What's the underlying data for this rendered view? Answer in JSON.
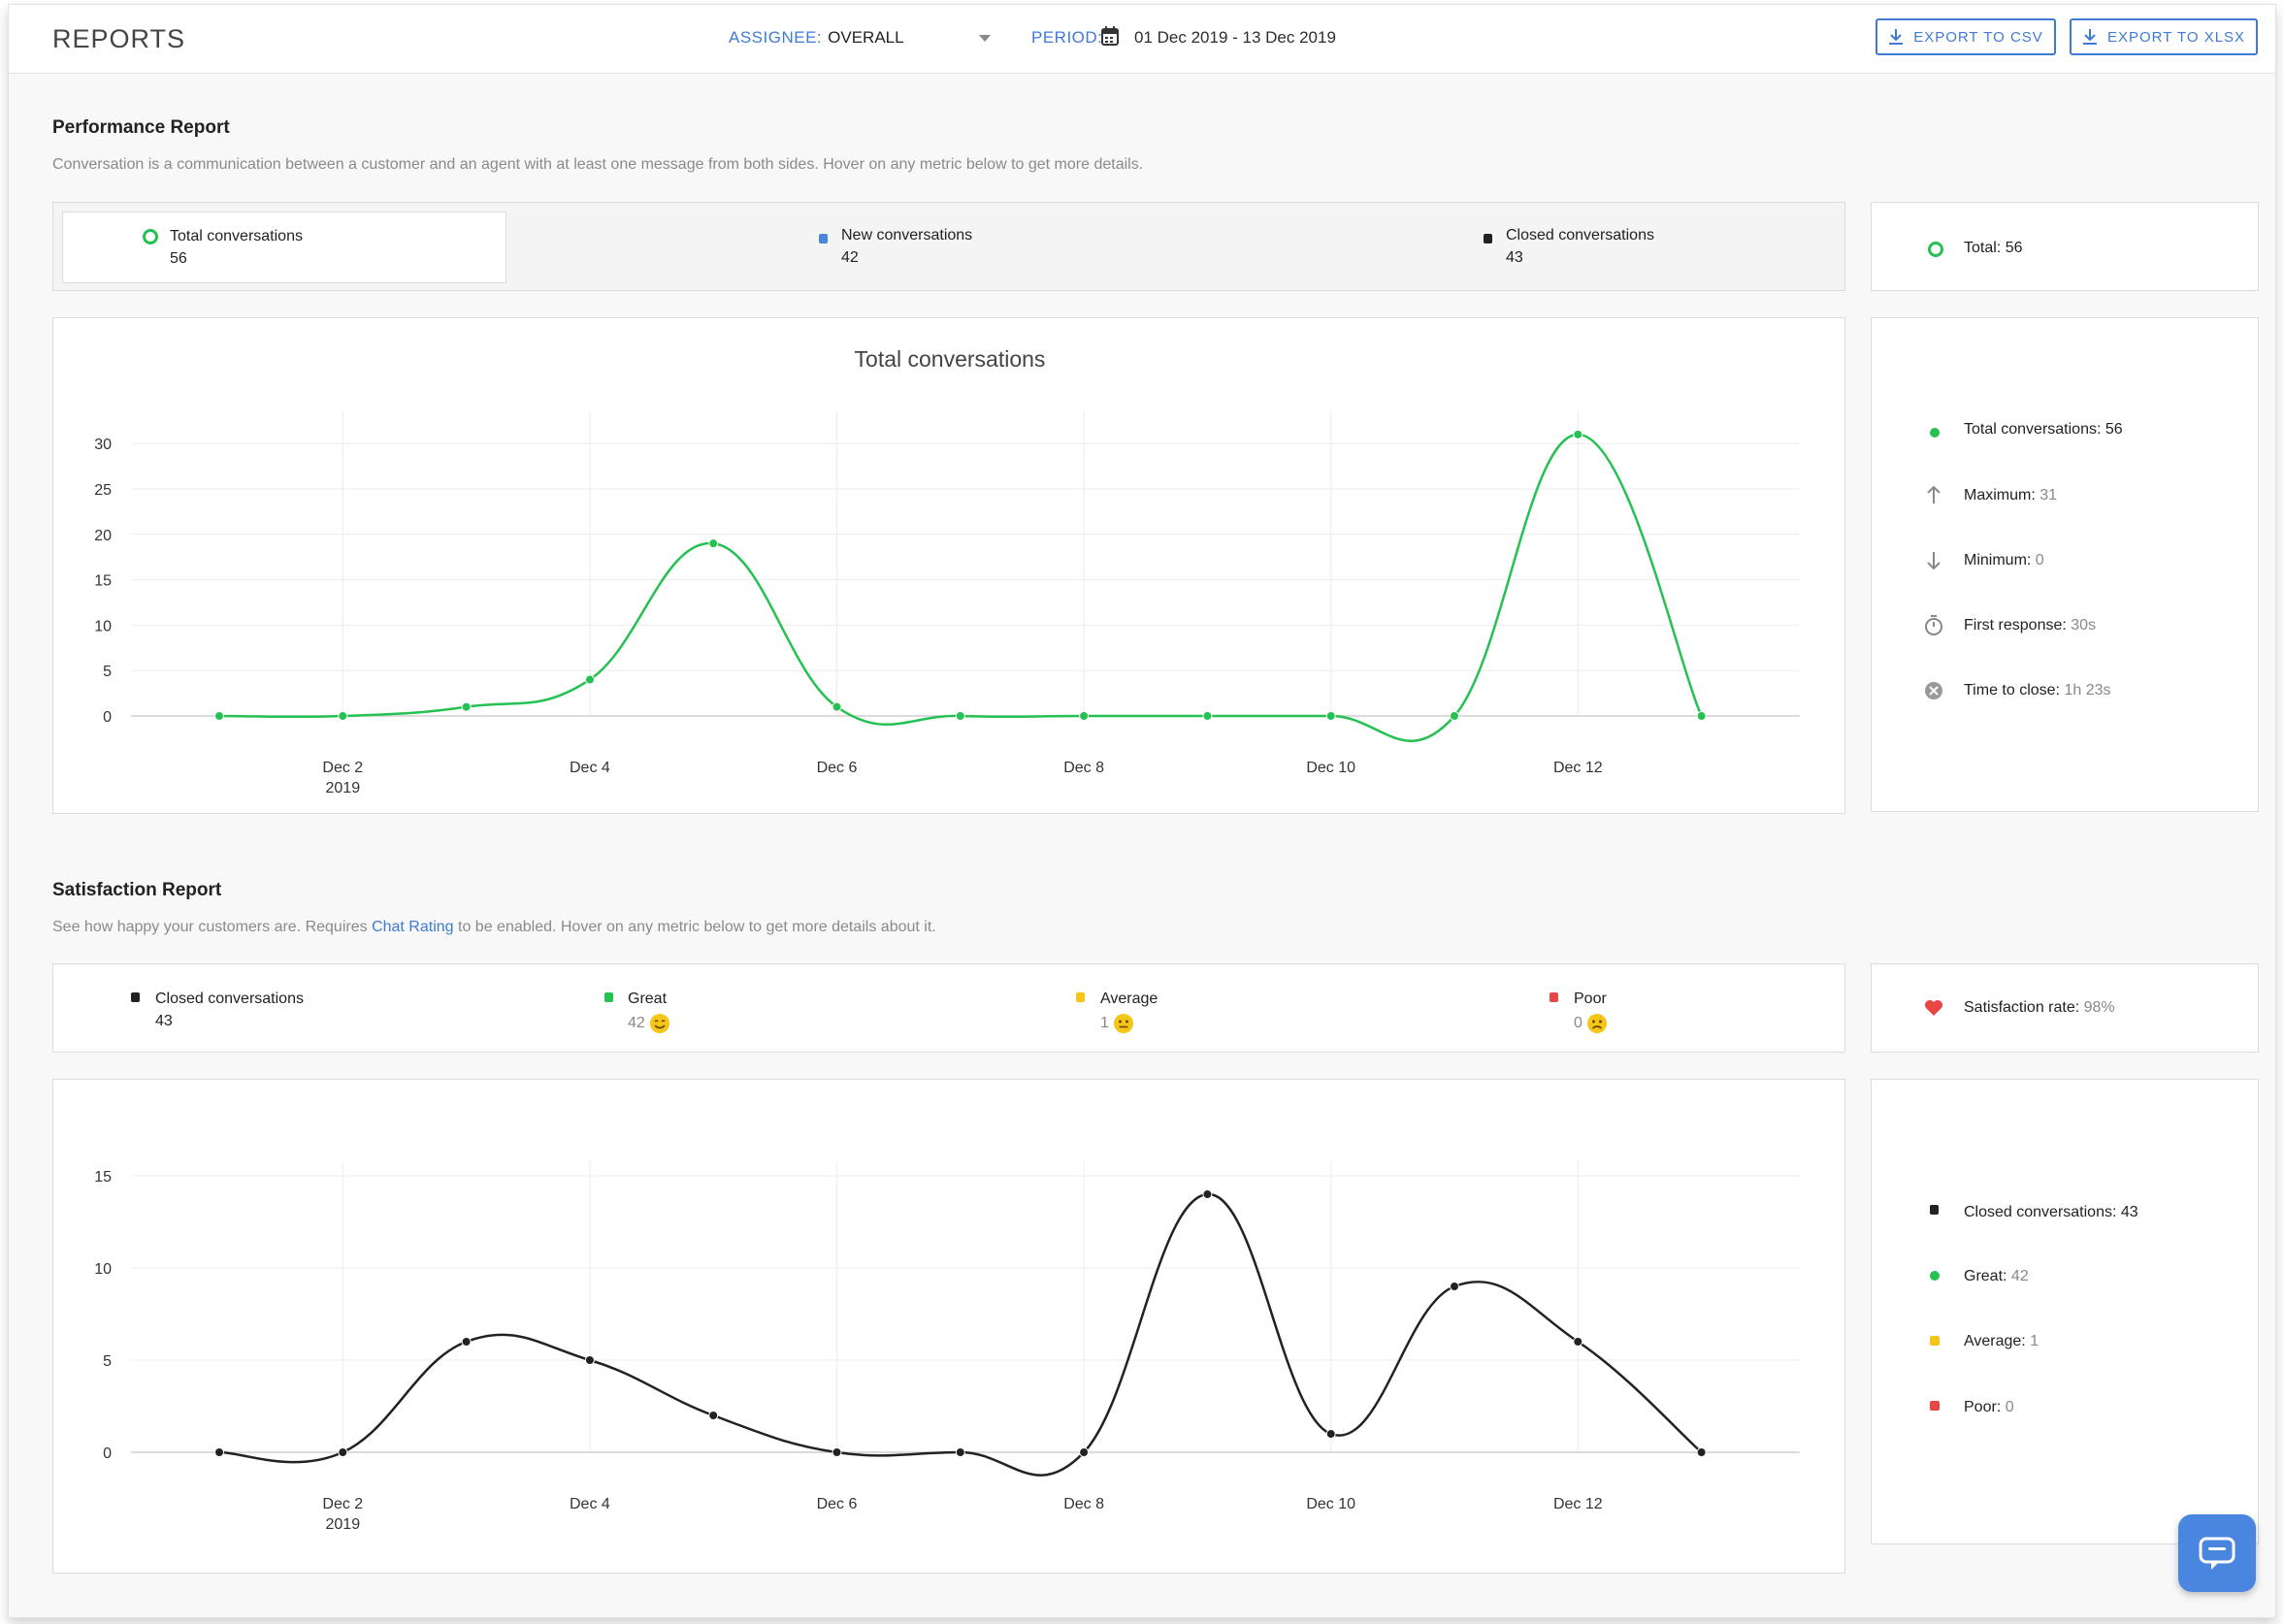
{
  "header": {
    "title": "REPORTS",
    "assignee_label": "ASSIGNEE:",
    "assignee_value": "OVERALL",
    "period_label": "PERIOD:",
    "period_value": "01 Dec 2019 - 13 Dec 2019",
    "export_csv": "EXPORT TO CSV",
    "export_xlsx": "EXPORT TO XLSX"
  },
  "performance": {
    "title": "Performance Report",
    "description": "Conversation is a communication between a customer and an agent with at least one message from both sides. Hover on any metric below to get more details.",
    "metrics": [
      {
        "label": "Total conversations",
        "value": "56"
      },
      {
        "label": "New conversations",
        "value": "42"
      },
      {
        "label": "Closed conversations",
        "value": "43"
      }
    ],
    "total_label": "Total: 56",
    "chart_title": "Total conversations",
    "side": {
      "total": "Total conversations: 56",
      "max_label": "Maximum:",
      "max_value": "31",
      "min_label": "Minimum:",
      "min_value": "0",
      "first_label": "First response:",
      "first_value": "30s",
      "close_label": "Time to close:",
      "close_value": "1h 23s"
    }
  },
  "satisfaction": {
    "title": "Satisfaction Report",
    "desc_before": "See how happy your customers are. Requires ",
    "desc_link": "Chat Rating",
    "desc_after": " to be enabled. Hover on any metric below to get more details about it.",
    "metrics": [
      {
        "label": "Closed conversations",
        "value": "43"
      },
      {
        "label": "Great",
        "value": "42"
      },
      {
        "label": "Average",
        "value": "1"
      },
      {
        "label": "Poor",
        "value": "0"
      }
    ],
    "rate_label": "Satisfaction rate:",
    "rate_value": "98%",
    "side": {
      "closed": "Closed conversations: 43",
      "great_label": "Great:",
      "great_value": "42",
      "average_label": "Average:",
      "average_value": "1",
      "poor_label": "Poor:",
      "poor_value": "0"
    }
  },
  "colors": {
    "accent": "#3f7bd4",
    "total": "#25c152",
    "new": "#4a86e0",
    "closed": "#222222",
    "great": "#25c152",
    "average": "#f5c518",
    "poor": "#e84545",
    "heart": "#e84545"
  },
  "chart_data": [
    {
      "type": "line",
      "title": "Total conversations",
      "x": [
        "Dec 1",
        "Dec 2",
        "Dec 3",
        "Dec 4",
        "Dec 5",
        "Dec 6",
        "Dec 7",
        "Dec 8",
        "Dec 9",
        "Dec 10",
        "Dec 11",
        "Dec 12",
        "Dec 13"
      ],
      "x_tick_labels": [
        "Dec 2",
        "Dec 4",
        "Dec 6",
        "Dec 8",
        "Dec 10",
        "Dec 12"
      ],
      "x_year_label": "2019",
      "series": [
        {
          "values": [
            0,
            0,
            1,
            4,
            19,
            1,
            0,
            0,
            0,
            0,
            0,
            31,
            0
          ],
          "color": "#25c152"
        }
      ],
      "yticks": [
        0,
        5,
        10,
        15,
        20,
        25,
        30
      ],
      "ylim": [
        0,
        31
      ],
      "grid": true
    },
    {
      "type": "line",
      "x": [
        "Dec 1",
        "Dec 2",
        "Dec 3",
        "Dec 4",
        "Dec 5",
        "Dec 6",
        "Dec 7",
        "Dec 8",
        "Dec 9",
        "Dec 10",
        "Dec 11",
        "Dec 12",
        "Dec 13"
      ],
      "x_tick_labels": [
        "Dec 2",
        "Dec 4",
        "Dec 6",
        "Dec 8",
        "Dec 10",
        "Dec 12"
      ],
      "x_year_label": "2019",
      "series": [
        {
          "values": [
            0,
            0,
            6,
            5,
            2,
            0,
            0,
            0,
            14,
            1,
            9,
            6,
            0
          ],
          "color": "#222222"
        }
      ],
      "yticks": [
        0,
        5,
        10,
        15
      ],
      "ylim": [
        0,
        15
      ],
      "grid": true
    }
  ]
}
